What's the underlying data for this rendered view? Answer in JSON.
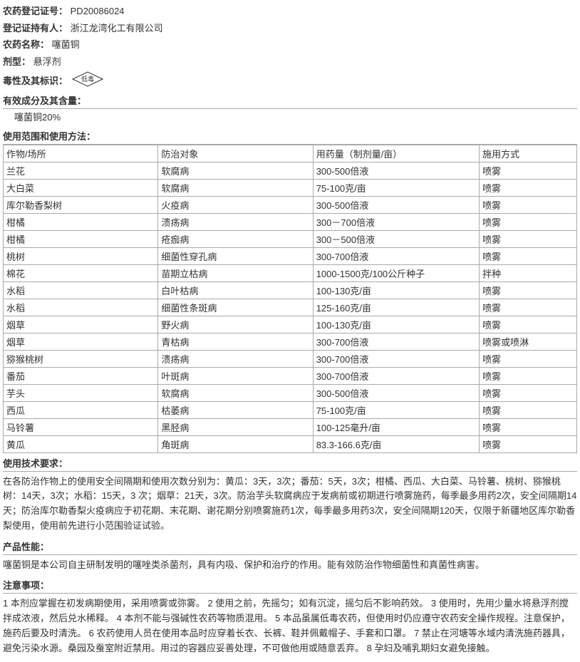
{
  "header": {
    "reg_no_label": "农药登记证号：",
    "reg_no": "PD20086024",
    "holder_label": "登记证持有人：",
    "holder": "浙江龙湾化工有限公司",
    "name_label": "农药名称：",
    "name": "噻菌铜",
    "form_label": "剂型：",
    "form": "悬浮剂",
    "toxicity_label": "毒性及其标识：",
    "toxicity_text": "低毒"
  },
  "ingredients": {
    "header": "有效成分及其含量：",
    "item": "噻菌铜20%"
  },
  "usage": {
    "header": "使用范围和使用方法：",
    "columns": [
      "作物/场所",
      "防治对象",
      "用药量（制剂量/亩）",
      "施用方式"
    ],
    "rows": [
      [
        "兰花",
        "软腐病",
        "300-500倍液",
        "喷雾"
      ],
      [
        "大白菜",
        "软腐病",
        "75-100克/亩",
        "喷雾"
      ],
      [
        "库尔勒香梨树",
        "火疫病",
        "300-500倍液",
        "喷雾"
      ],
      [
        "柑橘",
        "溃疡病",
        "300－700倍液",
        "喷雾"
      ],
      [
        "柑橘",
        "疮痂病",
        "300－500倍液",
        "喷雾"
      ],
      [
        "桃树",
        "细菌性穿孔病",
        "300-700倍液",
        "喷雾"
      ],
      [
        "棉花",
        "苗期立枯病",
        "1000-1500克/100公斤种子",
        "拌种"
      ],
      [
        "水稻",
        "白叶枯病",
        "100-130克/亩",
        "喷雾"
      ],
      [
        "水稻",
        "细菌性条斑病",
        "125-160克/亩",
        "喷雾"
      ],
      [
        "烟草",
        "野火病",
        "100-130克/亩",
        "喷雾"
      ],
      [
        "烟草",
        "青枯病",
        "300-700倍液",
        "喷雾或喷淋"
      ],
      [
        "猕猴桃树",
        "溃疡病",
        "300-700倍液",
        "喷雾"
      ],
      [
        "番茄",
        "叶斑病",
        "300-700倍液",
        "喷雾"
      ],
      [
        "芋头",
        "软腐病",
        "300-500倍液",
        "喷雾"
      ],
      [
        "西瓜",
        "枯萎病",
        "75-100克/亩",
        "喷雾"
      ],
      [
        "马铃薯",
        "黑胫病",
        "100-125毫升/亩",
        "喷雾"
      ],
      [
        "黄瓜",
        "角斑病",
        "83.3-166.6克/亩",
        "喷雾"
      ]
    ],
    "col_widths": [
      "27%",
      "27%",
      "29%",
      "17%"
    ]
  },
  "tech": {
    "header": "使用技术要求：",
    "text": "在各防治作物上的使用安全间隔期和使用次数分别为：黄瓜：3天，3次；番茄：5天，3次；柑橘、西瓜、大白菜、马铃薯、桃树、猕猴桃树：14天，3次；水稻：15天，3 次；烟草：21天，3次。防治芋头软腐病应于发病前或初期进行喷雾施药，每季最多用药2次，安全间隔期14天；防治库尔勒香梨火疫病应于初花期、末花期、谢花期分别喷雾施药1次，每季最多用药3次，安全间隔期120天，仅限于新疆地区库尔勒香梨使用，使用前先进行小范围验证试验。"
  },
  "performance": {
    "header": "产品性能：",
    "text": "噻菌铜是本公司自主研制发明的噻唑类杀菌剂，具有内吸、保护和治疗的作用。能有效防治作物细菌性和真菌性病害。"
  },
  "caution": {
    "header": "注意事项：",
    "text": "1 本剂应掌握在初发病期使用，采用喷雾或弥雾。 2 使用之前，先摇匀；如有沉淀，摇匀后不影响药效。 3 使用时，先用少量水将悬浮剂搅拌成浓液，然后兑水稀释。 4 本剂不能与强碱性农药等物质混用。 5 本品虽属低毒农药，但使用时仍应遵守农药安全操作规程。注意保护，施药后要及时清洗。 6 农药使用人员在使用本品时应穿着长衣、长裤、鞋并佩戴帽子、手套和口罩。 7 禁止在河塘等水域内清洗施药器具，避免污染水源。桑园及蚕室附近禁用。用过的容器应妥善处理，不可做他用或随意丢弃。 8 孕妇及哺乳期妇女避免接触。"
  },
  "styles": {
    "border_color": "#aaaaaa",
    "text_color": "#333333",
    "font_size": 13
  }
}
